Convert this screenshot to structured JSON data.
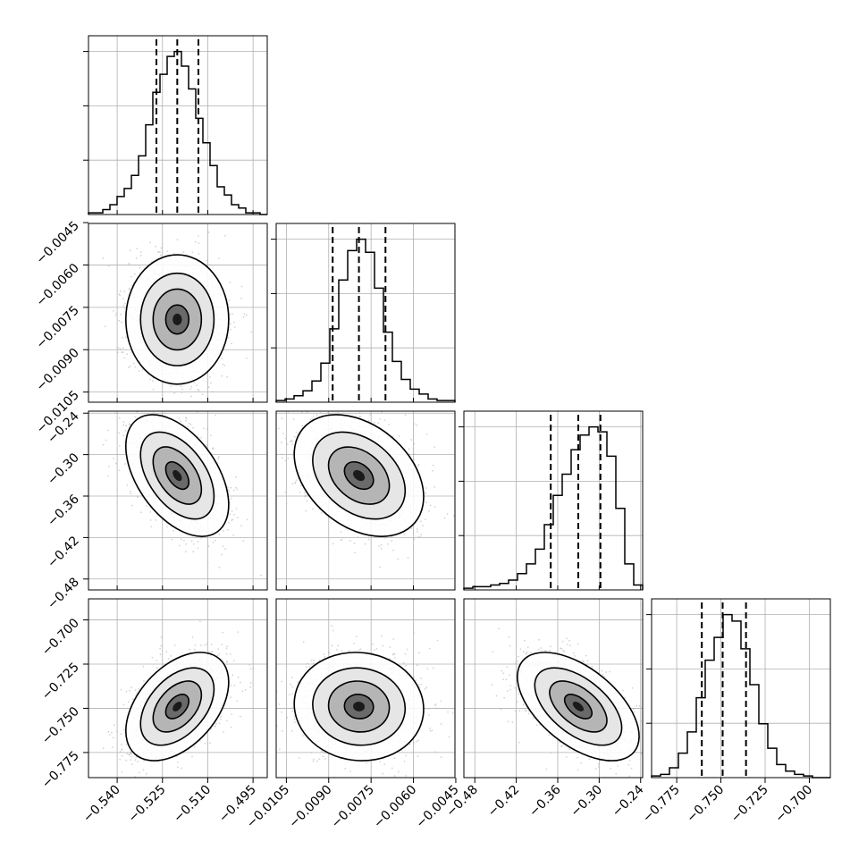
{
  "chart_data": {
    "type": "corner",
    "title": "",
    "n_params": 4,
    "colors": {
      "line": "#000000",
      "grid": "#b0b0b0",
      "points": "#b8b8b8",
      "background": "#ffffff"
    },
    "grid": true,
    "params": [
      {
        "index": 0,
        "range": [
          -0.5495,
          -0.4903
        ],
        "ticks": [
          -0.54,
          -0.525,
          -0.51,
          -0.495
        ],
        "tick_labels": [
          "−0.540",
          "−0.525",
          "−0.510",
          "−0.495"
        ],
        "quantiles": [
          -0.527,
          -0.5201,
          -0.5131
        ],
        "hist": [
          1,
          1,
          3,
          6,
          11,
          16,
          24,
          36,
          55,
          75,
          86,
          97,
          100,
          91,
          77,
          59,
          44,
          30,
          17,
          12,
          6,
          4,
          1,
          1,
          0
        ]
      },
      {
        "index": 1,
        "range": [
          -0.01086,
          -0.00453
        ],
        "ticks": [
          -0.0105,
          -0.009,
          -0.0075,
          -0.006,
          -0.0045
        ],
        "tick_labels": [
          "−0.0105",
          "−0.0090",
          "−0.0075",
          "−0.0060",
          "−0.0045"
        ],
        "quantiles": [
          -0.00886,
          -0.00793,
          -0.00699
        ],
        "hist": [
          1,
          2,
          4,
          7,
          13,
          24,
          45,
          75,
          93,
          100,
          92,
          70,
          43,
          25,
          14,
          8,
          5,
          2,
          1,
          1
        ]
      },
      {
        "index": 2,
        "range": [
          -0.4958,
          -0.2371
        ],
        "ticks": [
          -0.48,
          -0.42,
          -0.36,
          -0.3,
          -0.24
        ],
        "tick_labels": [
          "−0.48",
          "−0.42",
          "−0.36",
          "−0.30",
          "−0.24"
        ],
        "quantiles": [
          -0.3701,
          -0.3303,
          -0.2982
        ],
        "hist": [
          1,
          2,
          2,
          3,
          4,
          6,
          10,
          16,
          25,
          40,
          58,
          71,
          86,
          95,
          100,
          97,
          82,
          50,
          16,
          3
        ]
      },
      {
        "index": 3,
        "range": [
          -0.7892,
          -0.6881
        ],
        "ticks": [
          -0.775,
          -0.75,
          -0.725,
          -0.7
        ],
        "tick_labels": [
          "−0.775",
          "−0.750",
          "−0.725",
          "−0.700"
        ],
        "quantiles": [
          -0.7608,
          -0.749,
          -0.7358
        ],
        "hist": [
          1,
          2,
          6,
          15,
          28,
          49,
          72,
          86,
          100,
          96,
          79,
          57,
          33,
          18,
          8,
          4,
          2,
          1,
          0,
          0
        ]
      }
    ],
    "pairs": [
      {
        "x": 0,
        "y": 1,
        "center": [
          -0.5201,
          -0.00793
        ],
        "rho": 0.0
      },
      {
        "x": 0,
        "y": 2,
        "center": [
          -0.5201,
          -0.3303
        ],
        "rho": -0.48
      },
      {
        "x": 1,
        "y": 2,
        "center": [
          -0.00793,
          -0.3303
        ],
        "rho": -0.35
      },
      {
        "x": 0,
        "y": 3,
        "center": [
          -0.5201,
          -0.749
        ],
        "rho": 0.45
      },
      {
        "x": 1,
        "y": 3,
        "center": [
          -0.00793,
          -0.749
        ],
        "rho": -0.05
      },
      {
        "x": 2,
        "y": 3,
        "center": [
          -0.3303,
          -0.749
        ],
        "rho": -0.55
      }
    ]
  }
}
